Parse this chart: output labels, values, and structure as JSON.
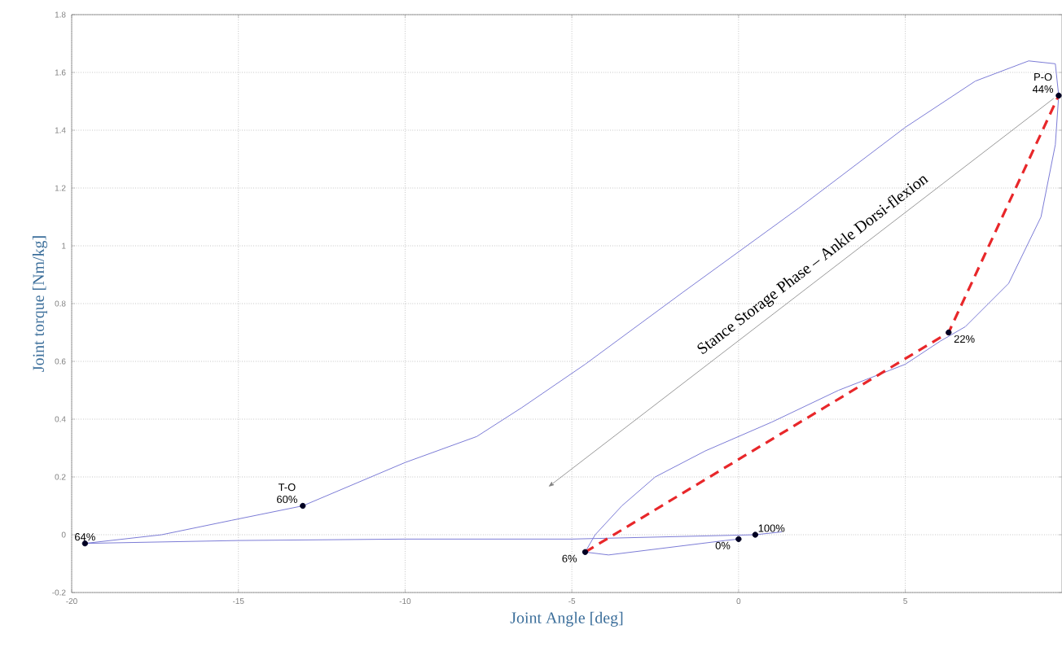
{
  "chart_data": {
    "type": "line",
    "xlabel": "Joint Angle [deg]",
    "ylabel": "Joint torque [Nm/kg]",
    "xlim": [
      -20,
      9.7
    ],
    "ylim": [
      -0.2,
      1.8
    ],
    "xticks": [
      -20,
      -15,
      -10,
      -5,
      0,
      5
    ],
    "yticks": [
      -0.2,
      0,
      0.2,
      0.4,
      0.6,
      0.8,
      1,
      1.2,
      1.4,
      1.6,
      1.8
    ],
    "grid": true,
    "series": [
      {
        "color": "#7b7bd6",
        "marker": "none",
        "line_style": "solid",
        "x": [
          0,
          -0.4,
          -3.9,
          -4.6,
          -4.3,
          -3.5,
          -2.5,
          -1.0,
          1.0,
          3.0,
          5.0,
          6.05,
          6.8,
          8.1,
          9.07,
          9.5,
          9.6,
          9.5,
          8.7,
          7.1,
          5.0,
          1.8,
          -1.66,
          -4.6,
          -6.5,
          -7.85,
          -10,
          -13.07,
          -15.2,
          -17.3,
          -19.6,
          -15,
          -10,
          -5,
          0.5,
          1.3
        ],
        "values": [
          -0.015,
          -0.02,
          -0.07,
          -0.06,
          0.0,
          0.1,
          0.2,
          0.29,
          0.39,
          0.5,
          0.59,
          0.67,
          0.72,
          0.87,
          1.1,
          1.35,
          1.52,
          1.63,
          1.64,
          1.57,
          1.41,
          1.13,
          0.84,
          0.59,
          0.44,
          0.34,
          0.25,
          0.1,
          0.05,
          0.0,
          -0.03,
          -0.02,
          -0.015,
          -0.015,
          0.0,
          0.01
        ]
      },
      {
        "color": "#e8272a",
        "marker": "none",
        "line_style": "dashed",
        "x": [
          -4.6,
          6.3,
          9.6
        ],
        "values": [
          -0.06,
          0.7,
          1.52
        ]
      },
      {
        "type": "scatter",
        "color": "#000022",
        "marker": "circle",
        "x": [
          -19.6,
          -13.07,
          -4.6,
          0,
          0.5,
          6.3,
          9.6
        ],
        "values": [
          -0.03,
          0.1,
          -0.06,
          -0.015,
          0.0,
          0.7,
          1.52
        ]
      }
    ],
    "annotations": [
      {
        "text": "64%",
        "x": -19.6,
        "y": -0.03
      },
      {
        "text": "T-O 60%",
        "x": -13.07,
        "y": 0.1
      },
      {
        "text": "6%",
        "x": -4.6,
        "y": -0.06
      },
      {
        "text": "0%",
        "x": 0,
        "y": -0.015
      },
      {
        "text": "100%",
        "x": 0.5,
        "y": 0.0
      },
      {
        "text": "22%",
        "x": 6.3,
        "y": 0.7
      },
      {
        "text": "P-O 44%",
        "x": 9.6,
        "y": 1.52
      },
      "Stance Storage Phase – Ankle Dorsi-flexion"
    ]
  }
}
